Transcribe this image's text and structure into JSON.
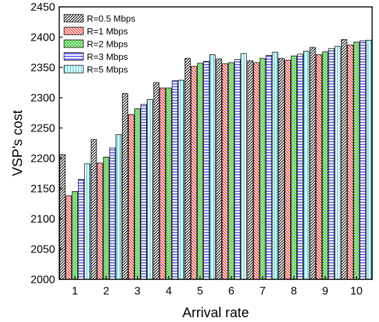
{
  "chart_data": {
    "type": "bar",
    "xlabel": "Arrival rate",
    "ylabel": "VSP's cost",
    "ylim": [
      2000,
      2450
    ],
    "yticks": [
      2000,
      2050,
      2100,
      2150,
      2200,
      2250,
      2300,
      2350,
      2400,
      2450
    ],
    "categories": [
      "1",
      "2",
      "3",
      "4",
      "5",
      "6",
      "7",
      "8",
      "9",
      "10"
    ],
    "legend_position": "top-left",
    "grid": false,
    "series": [
      {
        "name": "R=0.5 Mbps",
        "pattern": "diag-right",
        "color": "#000000",
        "fill": "#ffffff",
        "values": [
          2206,
          2231,
          2307,
          2325,
          2365,
          2364,
          2361,
          2365,
          2383,
          2396
        ]
      },
      {
        "name": "R=1 Mbps",
        "pattern": "diag-left",
        "color": "#ff0000",
        "fill": "#ffffff",
        "values": [
          2138,
          2192,
          2272,
          2316,
          2352,
          2356,
          2358,
          2362,
          2371,
          2387
        ]
      },
      {
        "name": "R=2 Mbps",
        "pattern": "dots",
        "color": "#00b000",
        "fill": "#a8e8a0",
        "values": [
          2145,
          2202,
          2282,
          2316,
          2357,
          2358,
          2365,
          2369,
          2376,
          2392
        ]
      },
      {
        "name": "R=3 Mbps",
        "pattern": "horizontal",
        "color": "#0000ff",
        "fill": "#ffffff",
        "values": [
          2165,
          2217,
          2289,
          2328,
          2360,
          2363,
          2370,
          2372,
          2381,
          2394
        ]
      },
      {
        "name": "R=5 Mbps",
        "pattern": "vertical",
        "color": "#00c8d8",
        "fill": "#ffffff",
        "values": [
          2191,
          2239,
          2297,
          2329,
          2371,
          2373,
          2375,
          2377,
          2385,
          2395
        ]
      }
    ]
  }
}
